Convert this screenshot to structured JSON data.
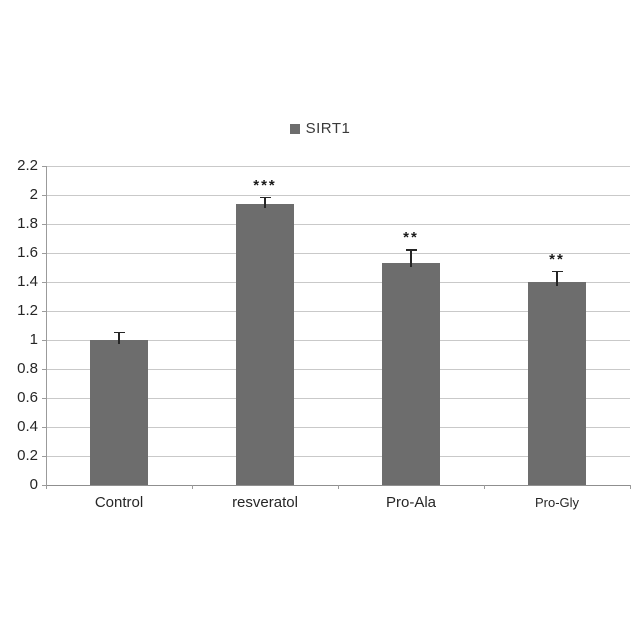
{
  "chart_data": {
    "type": "bar",
    "title": "",
    "xlabel": "",
    "ylabel": "",
    "legend": {
      "label": "SIRT1",
      "marker_color": "#6d6d6d",
      "position": "top-center"
    },
    "categories": [
      "Control",
      "resveratol",
      "Pro-Ala",
      "Pro-Gly"
    ],
    "values": [
      1.0,
      1.94,
      1.53,
      1.4
    ],
    "errors_plus": [
      0.05,
      0.04,
      0.09,
      0.07
    ],
    "significance": [
      "",
      "***",
      "**",
      "**"
    ],
    "bar_color": "#6d6d6d",
    "error_bar_color": "#262626",
    "grid": true,
    "gridline_color": "#c9c9c9",
    "axis_color": "#9b9b9b",
    "text_color": "#262626",
    "ylim": [
      0,
      2.2
    ],
    "ytick_step": 0.2,
    "ytick_labels": [
      "0",
      "0.2",
      "0.4",
      "0.6",
      "0.8",
      "1",
      "1.2",
      "1.4",
      "1.6",
      "1.8",
      "2",
      "2.2"
    ]
  }
}
